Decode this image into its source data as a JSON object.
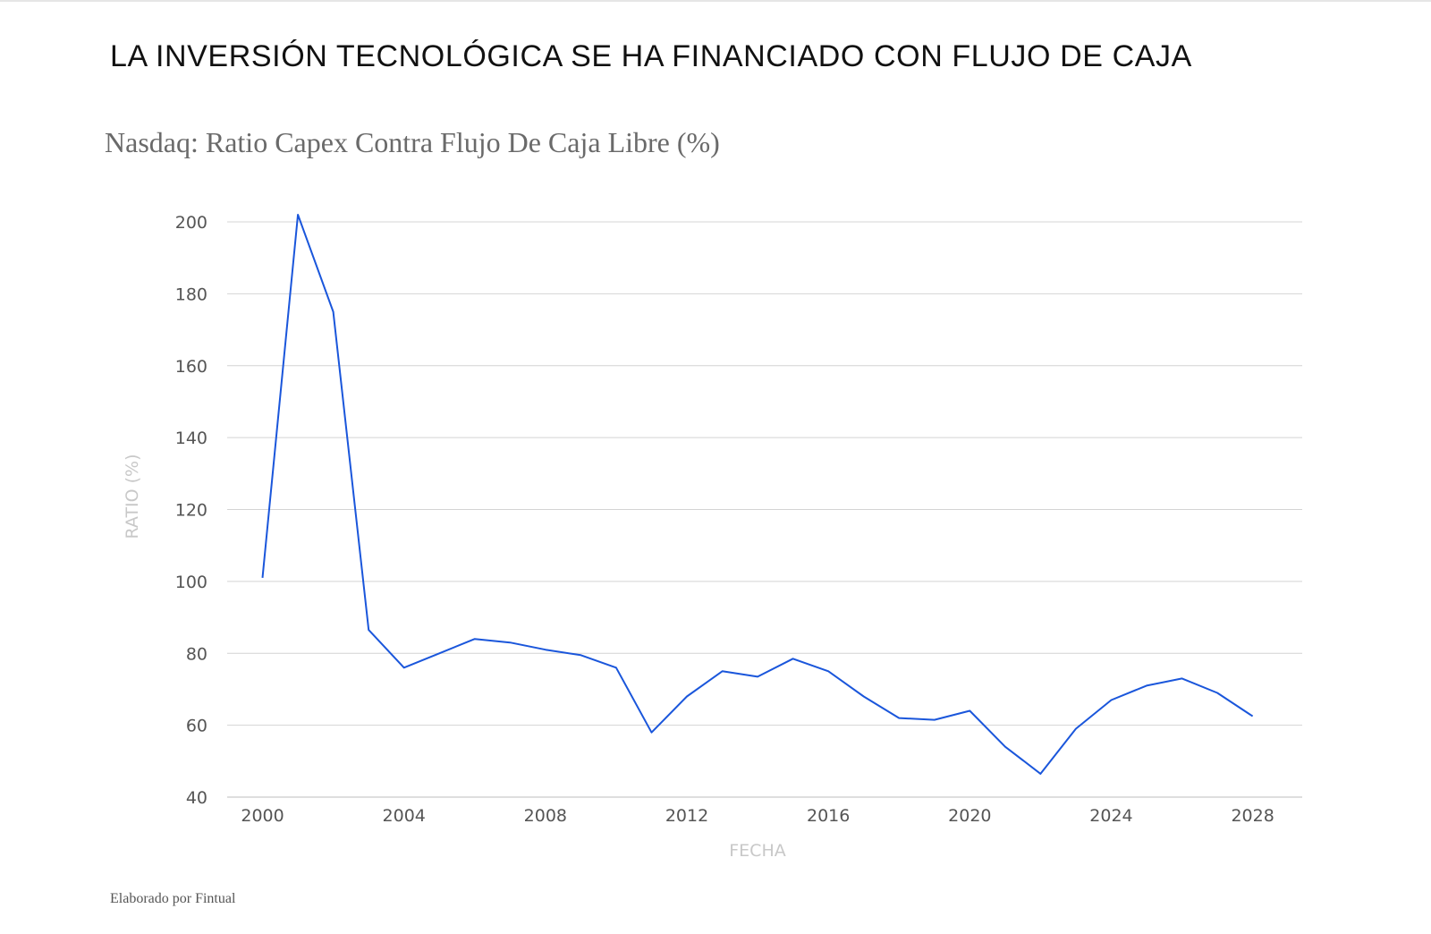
{
  "headline": "LA INVERSIÓN TECNOLÓGICA SE HA FINANCIADO CON FLUJO DE CAJA",
  "credit": "Elaborado por Fintual",
  "colors": {
    "line": "#1a56db",
    "grid": "#d4d4d4",
    "tick_text": "#555555",
    "axis_title": "#c8c8c8"
  },
  "chart_data": {
    "type": "line",
    "title": "Nasdaq: Ratio Capex Contra Flujo De Caja Libre (%)",
    "xlabel": "FECHA",
    "ylabel": "RATIO (%)",
    "xlim": [
      1999,
      2029.4
    ],
    "ylim": [
      40,
      200
    ],
    "grid": true,
    "x_ticks": [
      "2000",
      "2004",
      "2008",
      "2012",
      "2016",
      "2020",
      "2024",
      "2028"
    ],
    "y_ticks": [
      "40",
      "60",
      "80",
      "100",
      "120",
      "140",
      "160",
      "180",
      "200"
    ],
    "x": [
      2000,
      2001,
      2002,
      2003,
      2004,
      2005,
      2006,
      2007,
      2008,
      2009,
      2010,
      2011,
      2012,
      2013,
      2014,
      2015,
      2016,
      2017,
      2018,
      2019,
      2020,
      2021,
      2022,
      2023,
      2024,
      2025,
      2026,
      2027,
      2028
    ],
    "values": [
      101,
      202,
      175,
      86.5,
      76,
      80,
      84,
      83,
      81,
      79.5,
      76,
      58,
      68,
      75,
      73.5,
      78.5,
      75,
      68,
      62,
      61.5,
      64,
      54,
      46.5,
      59,
      67,
      71,
      73,
      69,
      62.5
    ]
  }
}
